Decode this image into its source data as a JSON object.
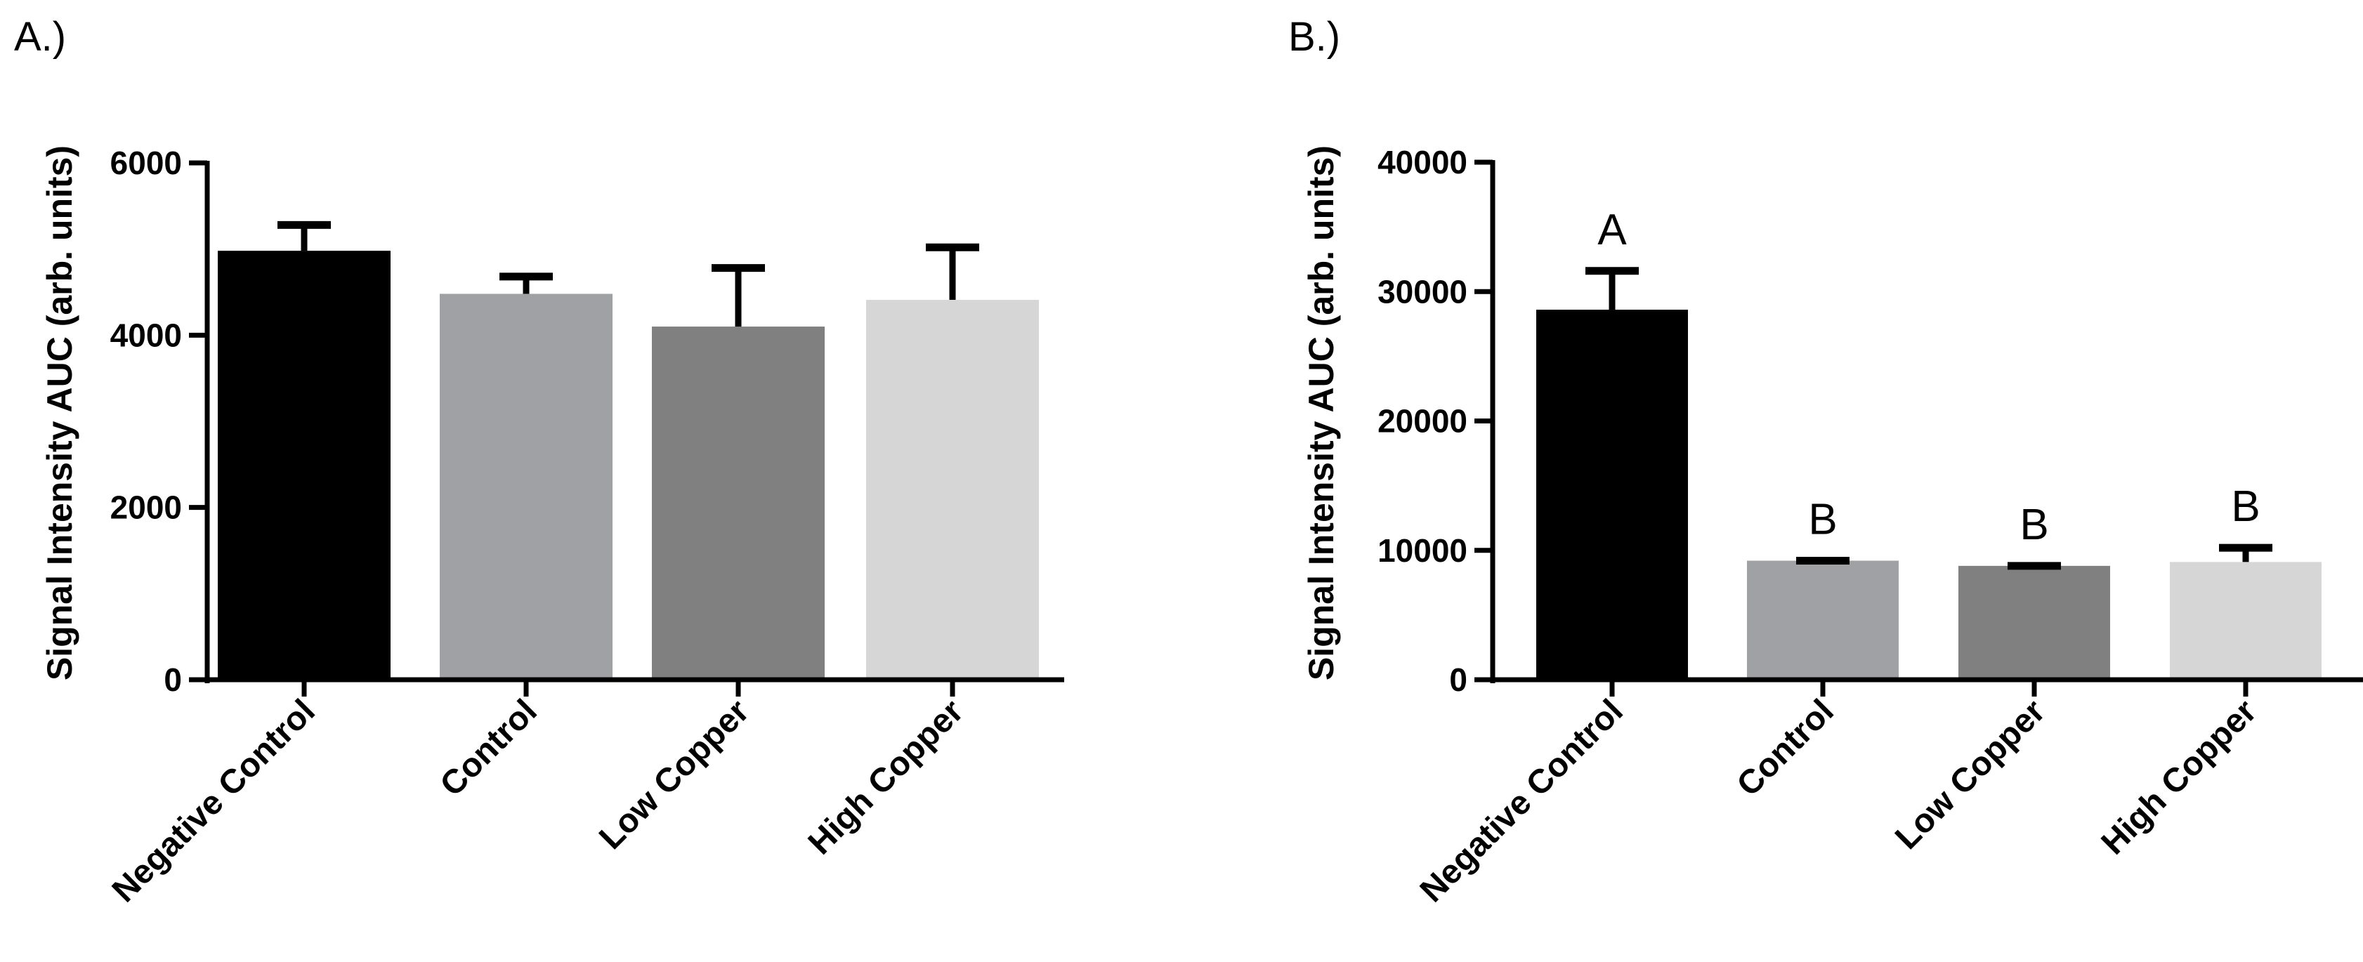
{
  "chart_data": [
    {
      "type": "bar",
      "panel_label": "A.)",
      "title": "",
      "xlabel": "",
      "ylabel": "Signal Intensity AUC (arb. units)",
      "ylim": [
        0,
        6000
      ],
      "yticks": [
        0,
        2000,
        4000,
        6000
      ],
      "ytick_labels": [
        "0",
        "2000",
        "4000",
        "6000"
      ],
      "categories": [
        "Negative Control",
        "Control",
        "Low Copper",
        "High Copper"
      ],
      "values": [
        4980,
        4480,
        4100,
        4410
      ],
      "errors": [
        300,
        200,
        680,
        610
      ],
      "significance": [],
      "bar_colors": [
        "#000000",
        "#a0a1a5",
        "#808080",
        "#d6d6d6"
      ],
      "grid": false,
      "legend": "none"
    },
    {
      "type": "bar",
      "panel_label": "B.)",
      "title": "",
      "xlabel": "",
      "ylabel": "Signal Intensity AUC (arb. units)",
      "ylim": [
        0,
        40000
      ],
      "yticks": [
        0,
        10000,
        20000,
        30000,
        40000
      ],
      "ytick_labels": [
        "0",
        "10000",
        "20000",
        "30000",
        "40000"
      ],
      "categories": [
        "Negative Control",
        "Control",
        "Low Copper",
        "High Copper"
      ],
      "values": [
        28600,
        9200,
        8800,
        9100
      ],
      "errors": [
        3000,
        0,
        0,
        1100
      ],
      "significance": [
        "A",
        "B",
        "B",
        "B"
      ],
      "bar_colors": [
        "#000000",
        "#a0a1a5",
        "#808080",
        "#d6d6d6"
      ],
      "grid": false,
      "legend": "none"
    }
  ]
}
